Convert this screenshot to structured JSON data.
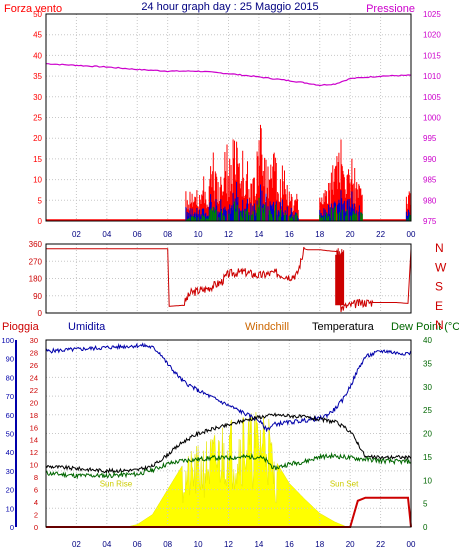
{
  "colors": {
    "wind": "#ff0000",
    "wind_gust": "#0000cc",
    "wind_avg": "#008000",
    "pressure": "#cc00cc",
    "direction": "#cc0000",
    "rain": "#cc0000",
    "humidity": "#0000aa",
    "windchill": "#cc6600",
    "temperature": "#000000",
    "dewpoint": "#006600",
    "sun": "#ffff00",
    "sun_label": "#cccc00",
    "grid": "#c8c8c8"
  },
  "header": {
    "left_label": "Forza vento",
    "title": "24 hour graph day : 25 Maggio 2015",
    "right_label": "Pressione"
  },
  "bottom_header": {
    "rain": "Pioggia",
    "humidity": "Umidita",
    "windchill": "Windchill",
    "temperature": "Temperatura",
    "dewpoint": "Dew Point (°C"
  },
  "chart_data": [
    {
      "type": "line",
      "panel": "wind-pressure",
      "x_ticks": [
        "02",
        "04",
        "06",
        "08",
        "10",
        "12",
        "14",
        "16",
        "18",
        "20",
        "22",
        "00"
      ],
      "xlim": [
        0,
        24
      ],
      "left_axis": {
        "ylim": [
          0,
          50
        ],
        "ticks": [
          0,
          5,
          10,
          15,
          20,
          25,
          30,
          35,
          40,
          45,
          50
        ]
      },
      "right_axis": {
        "ylim": [
          975,
          1025
        ],
        "ticks": [
          975,
          980,
          985,
          990,
          995,
          1000,
          1005,
          1010,
          1015,
          1020,
          1025
        ]
      },
      "series": [
        {
          "key": "pressure",
          "axis": "right",
          "x": [
            0,
            2,
            4,
            6,
            8,
            10,
            12,
            14,
            16,
            17,
            18,
            19,
            20,
            22,
            24
          ],
          "y": [
            1013,
            1012.6,
            1012.2,
            1011.6,
            1011.2,
            1011.2,
            1010.6,
            1009.8,
            1008.9,
            1008.4,
            1007.8,
            1008.1,
            1009.4,
            1010,
            1010.2
          ]
        },
        {
          "key": "wind_gust_peaks",
          "axis": "left",
          "x": [
            9.3,
            9.7,
            10.2,
            10.6,
            11.0,
            11.4,
            11.8,
            12.1,
            12.4,
            12.7,
            13.0,
            13.4,
            13.8,
            14.1,
            14.4,
            14.7,
            15.0,
            15.3,
            15.6,
            15.9,
            16.2,
            18.2,
            18.6,
            19.0,
            19.4,
            19.8,
            20.2,
            20.5,
            23.9
          ],
          "y": [
            9,
            6,
            12,
            10,
            19,
            8,
            22,
            16,
            26,
            14,
            20,
            12,
            15,
            24,
            18,
            14,
            23,
            10,
            16,
            9,
            7,
            6,
            10,
            17,
            26,
            14,
            17,
            9,
            8
          ]
        }
      ]
    },
    {
      "type": "line",
      "panel": "wind-direction",
      "xlim": [
        0,
        24
      ],
      "left_axis": {
        "ylim": [
          0,
          360
        ],
        "ticks": [
          0,
          90,
          180,
          270,
          360
        ]
      },
      "right_labels": [
        "N",
        "W",
        "S",
        "E",
        "N"
      ],
      "series": [
        {
          "key": "direction",
          "x": [
            0,
            8,
            8.1,
            9,
            9.5,
            10.5,
            11.5,
            12,
            13,
            14,
            15,
            16,
            16.5,
            17,
            17.2,
            18,
            18.5,
            19.2,
            19.4,
            19.7,
            20,
            20.5,
            21,
            23,
            23.8,
            24
          ],
          "y": [
            335,
            335,
            35,
            40,
            105,
            125,
            160,
            205,
            215,
            195,
            210,
            190,
            200,
            335,
            330,
            330,
            325,
            320,
            25,
            35,
            40,
            50,
            55,
            55,
            50,
            335
          ]
        }
      ]
    },
    {
      "type": "line",
      "panel": "temp-humidity-rain",
      "x_ticks": [
        "02",
        "04",
        "06",
        "08",
        "10",
        "12",
        "14",
        "16",
        "18",
        "20",
        "22",
        "00"
      ],
      "xlim": [
        0,
        24
      ],
      "humidity_axis": {
        "ylim": [
          0,
          100
        ],
        "ticks": [
          0,
          10,
          20,
          30,
          40,
          50,
          60,
          70,
          80,
          90,
          100
        ]
      },
      "rain_axis": {
        "ylim": [
          0,
          30
        ],
        "ticks": [
          0,
          2,
          4,
          6,
          8,
          10,
          12,
          14,
          16,
          18,
          20,
          22,
          24,
          26,
          28,
          30
        ]
      },
      "temperature_axis": {
        "ylim": [
          0,
          40
        ],
        "ticks": [
          0,
          5,
          10,
          15,
          20,
          25,
          30,
          35,
          40
        ]
      },
      "annotations": [
        {
          "text": "Sun Rise",
          "x": 4.6,
          "y": 6.5
        },
        {
          "text": "Sun Set",
          "x": 19.6,
          "y": 6.5
        }
      ],
      "series": [
        {
          "key": "humidity",
          "axis": "humidity",
          "x": [
            0,
            2,
            4,
            6,
            6.5,
            7,
            7.5,
            8,
            9,
            10,
            11,
            12,
            13,
            14,
            14.5,
            15,
            16,
            17,
            18,
            18.5,
            19,
            19.5,
            20,
            20.5,
            21,
            22,
            22.5,
            23,
            24
          ],
          "y": [
            94,
            95,
            96,
            97,
            97,
            96,
            93,
            87,
            78,
            73,
            69,
            65,
            61,
            57,
            52,
            55,
            56,
            57,
            58,
            60,
            63,
            68,
            75,
            84,
            91,
            94,
            94,
            93,
            93
          ]
        },
        {
          "key": "temperature",
          "axis": "temperature",
          "x": [
            0,
            2,
            4,
            6,
            7,
            8,
            9,
            10,
            11,
            12,
            13,
            14,
            15,
            16,
            17,
            18,
            19,
            20,
            20.5,
            21,
            22,
            23,
            24
          ],
          "y": [
            13,
            12.5,
            12,
            12.2,
            13,
            15.5,
            18.2,
            20,
            21,
            21.8,
            22.8,
            23.5,
            24,
            23.8,
            23.5,
            23,
            22.5,
            20.5,
            18,
            15,
            14.8,
            15,
            14.8
          ]
        },
        {
          "key": "dewpoint",
          "axis": "temperature",
          "x": [
            0,
            2,
            4,
            6,
            7,
            8,
            9,
            10,
            11,
            12,
            13,
            14,
            14.5,
            15,
            16,
            17,
            18,
            19,
            20,
            21,
            22,
            23,
            24
          ],
          "y": [
            11.5,
            11,
            11,
            11.3,
            12.2,
            13.5,
            14.2,
            14.5,
            14.8,
            14.8,
            15,
            15,
            14.2,
            12.5,
            13.5,
            14,
            15,
            15.2,
            14.8,
            14.5,
            14.2,
            14,
            14
          ]
        },
        {
          "key": "rain",
          "axis": "rain",
          "x": [
            0,
            20,
            20.5,
            21,
            23.8,
            24
          ],
          "y": [
            0,
            0,
            4.2,
            4.7,
            4.7,
            0
          ]
        },
        {
          "key": "solar",
          "axis": "rain",
          "x": [
            5.3,
            6,
            7,
            8,
            9,
            10,
            11,
            12,
            12.5,
            13,
            13.5,
            14,
            14.5,
            15,
            16,
            17,
            18,
            19,
            19.8
          ],
          "y": [
            0,
            0.4,
            2,
            6,
            10,
            12,
            14,
            17,
            16,
            19,
            17,
            18,
            20,
            11,
            7,
            4.5,
            2.2,
            0.8,
            0
          ]
        }
      ]
    }
  ]
}
